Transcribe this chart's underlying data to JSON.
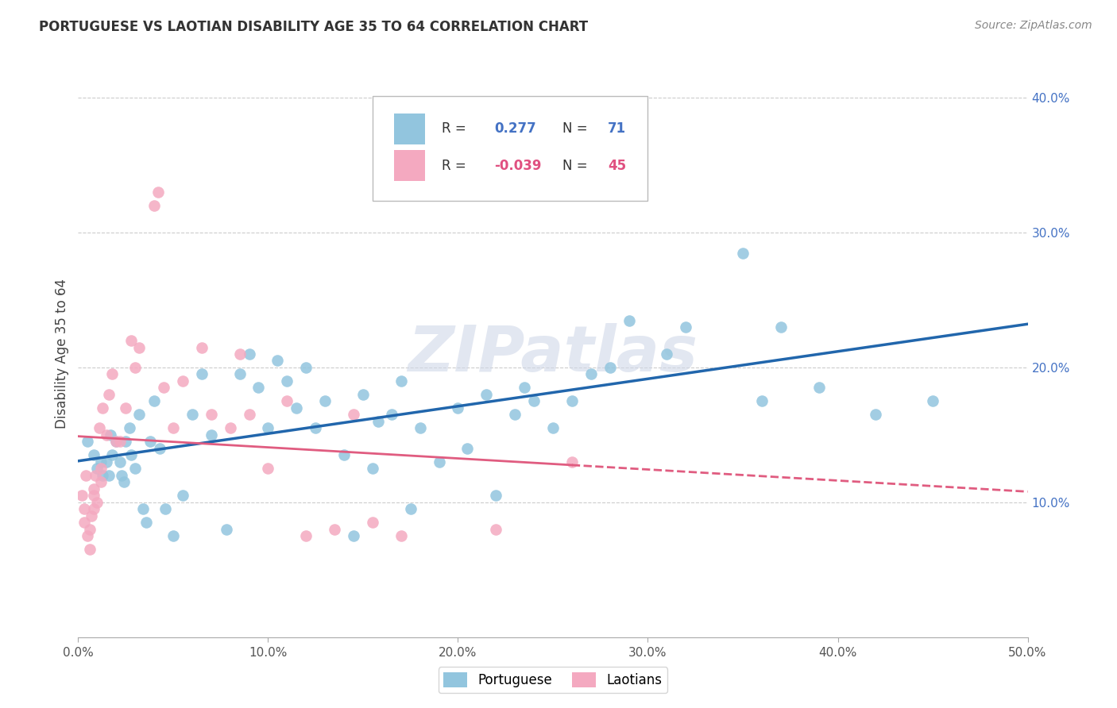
{
  "title": "PORTUGUESE VS LAOTIAN DISABILITY AGE 35 TO 64 CORRELATION CHART",
  "source": "Source: ZipAtlas.com",
  "ylabel": "Disability Age 35 to 64",
  "xlim": [
    0.0,
    0.5
  ],
  "ylim": [
    0.0,
    0.42
  ],
  "xticks": [
    0.0,
    0.1,
    0.2,
    0.3,
    0.4,
    0.5
  ],
  "yticks": [
    0.1,
    0.2,
    0.3,
    0.4
  ],
  "xtick_labels": [
    "0.0%",
    "10.0%",
    "20.0%",
    "30.0%",
    "40.0%",
    "50.0%"
  ],
  "ytick_labels": [
    "10.0%",
    "20.0%",
    "30.0%",
    "40.0%"
  ],
  "R_portuguese": 0.277,
  "N_portuguese": 71,
  "R_laotian": -0.039,
  "N_laotian": 45,
  "portuguese_color": "#92c5de",
  "laotian_color": "#f4a9c0",
  "portuguese_line_color": "#2166ac",
  "laotian_line_color": "#e05c80",
  "watermark": "ZIPatlas",
  "background_color": "#ffffff",
  "grid_color": "#cccccc",
  "portuguese_x": [
    0.005,
    0.008,
    0.01,
    0.012,
    0.013,
    0.015,
    0.016,
    0.017,
    0.018,
    0.02,
    0.022,
    0.023,
    0.024,
    0.025,
    0.027,
    0.028,
    0.03,
    0.032,
    0.034,
    0.036,
    0.038,
    0.04,
    0.043,
    0.046,
    0.05,
    0.055,
    0.06,
    0.065,
    0.07,
    0.078,
    0.085,
    0.09,
    0.095,
    0.1,
    0.105,
    0.11,
    0.115,
    0.12,
    0.125,
    0.13,
    0.14,
    0.145,
    0.15,
    0.155,
    0.158,
    0.165,
    0.17,
    0.175,
    0.18,
    0.19,
    0.2,
    0.205,
    0.21,
    0.215,
    0.22,
    0.23,
    0.235,
    0.24,
    0.25,
    0.26,
    0.27,
    0.28,
    0.29,
    0.31,
    0.32,
    0.35,
    0.36,
    0.37,
    0.39,
    0.42,
    0.45
  ],
  "portuguese_y": [
    0.145,
    0.135,
    0.125,
    0.13,
    0.12,
    0.13,
    0.12,
    0.15,
    0.135,
    0.145,
    0.13,
    0.12,
    0.115,
    0.145,
    0.155,
    0.135,
    0.125,
    0.165,
    0.095,
    0.085,
    0.145,
    0.175,
    0.14,
    0.095,
    0.075,
    0.105,
    0.165,
    0.195,
    0.15,
    0.08,
    0.195,
    0.21,
    0.185,
    0.155,
    0.205,
    0.19,
    0.17,
    0.2,
    0.155,
    0.175,
    0.135,
    0.075,
    0.18,
    0.125,
    0.16,
    0.165,
    0.19,
    0.095,
    0.155,
    0.13,
    0.17,
    0.14,
    0.34,
    0.18,
    0.105,
    0.165,
    0.185,
    0.175,
    0.155,
    0.175,
    0.195,
    0.2,
    0.235,
    0.21,
    0.23,
    0.285,
    0.175,
    0.23,
    0.185,
    0.165,
    0.175
  ],
  "laotian_x": [
    0.002,
    0.003,
    0.003,
    0.004,
    0.005,
    0.006,
    0.006,
    0.007,
    0.008,
    0.008,
    0.008,
    0.009,
    0.01,
    0.011,
    0.012,
    0.012,
    0.013,
    0.015,
    0.016,
    0.018,
    0.02,
    0.022,
    0.025,
    0.028,
    0.03,
    0.032,
    0.04,
    0.042,
    0.045,
    0.05,
    0.055,
    0.065,
    0.07,
    0.08,
    0.085,
    0.09,
    0.1,
    0.11,
    0.12,
    0.135,
    0.145,
    0.155,
    0.17,
    0.22,
    0.26
  ],
  "laotian_y": [
    0.105,
    0.095,
    0.085,
    0.12,
    0.075,
    0.065,
    0.08,
    0.09,
    0.11,
    0.105,
    0.095,
    0.12,
    0.1,
    0.155,
    0.115,
    0.125,
    0.17,
    0.15,
    0.18,
    0.195,
    0.145,
    0.145,
    0.17,
    0.22,
    0.2,
    0.215,
    0.32,
    0.33,
    0.185,
    0.155,
    0.19,
    0.215,
    0.165,
    0.155,
    0.21,
    0.165,
    0.125,
    0.175,
    0.075,
    0.08,
    0.165,
    0.085,
    0.075,
    0.08,
    0.13
  ]
}
